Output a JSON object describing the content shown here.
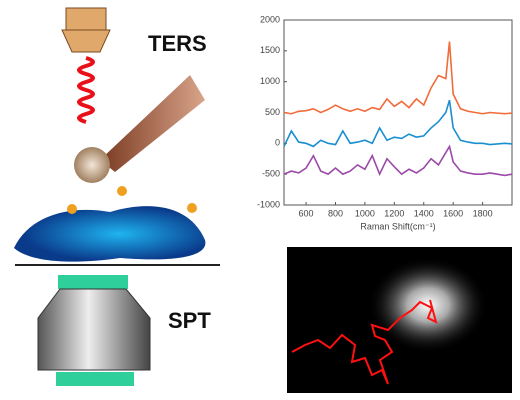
{
  "labels": {
    "top": "TERS",
    "bottom": "SPT"
  },
  "chart_data": {
    "type": "line",
    "xlabel": "Raman Shift(cm⁻¹)",
    "x": [
      450,
      500,
      550,
      600,
      650,
      700,
      750,
      800,
      850,
      900,
      950,
      1000,
      1050,
      1100,
      1150,
      1200,
      1250,
      1300,
      1350,
      1400,
      1450,
      1500,
      1550,
      1575,
      1600,
      1650,
      1700,
      1750,
      1800,
      1850,
      1900,
      1950,
      2000
    ],
    "series": [
      {
        "color": "#f26b3a",
        "values": [
          500,
          480,
          520,
          530,
          560,
          500,
          550,
          620,
          560,
          520,
          560,
          520,
          580,
          550,
          720,
          600,
          680,
          580,
          720,
          620,
          900,
          1100,
          1050,
          1650,
          800,
          560,
          520,
          500,
          480,
          500,
          490,
          480,
          490
        ]
      },
      {
        "color": "#1a8fd0",
        "values": [
          -50,
          200,
          20,
          0,
          -50,
          50,
          0,
          -20,
          200,
          0,
          20,
          50,
          0,
          250,
          50,
          100,
          80,
          150,
          100,
          120,
          250,
          350,
          500,
          700,
          250,
          50,
          20,
          0,
          0,
          -20,
          -10,
          0,
          -10
        ]
      },
      {
        "color": "#9b4aa8",
        "values": [
          -500,
          -450,
          -480,
          -400,
          -200,
          -450,
          -500,
          -400,
          -500,
          -450,
          -350,
          -420,
          -200,
          -500,
          -250,
          -380,
          -500,
          -420,
          -480,
          -400,
          -250,
          -350,
          -150,
          -50,
          -300,
          -450,
          -480,
          -500,
          -500,
          -480,
          -500,
          -520,
          -500
        ]
      }
    ],
    "xlim": [
      450,
      2000
    ],
    "ylim": [
      -1000,
      2000
    ],
    "xticks": [
      600,
      800,
      1000,
      1200,
      1400,
      1600,
      1800
    ],
    "yticks": [
      -1000,
      -500,
      0,
      500,
      1000,
      1500,
      2000
    ]
  }
}
